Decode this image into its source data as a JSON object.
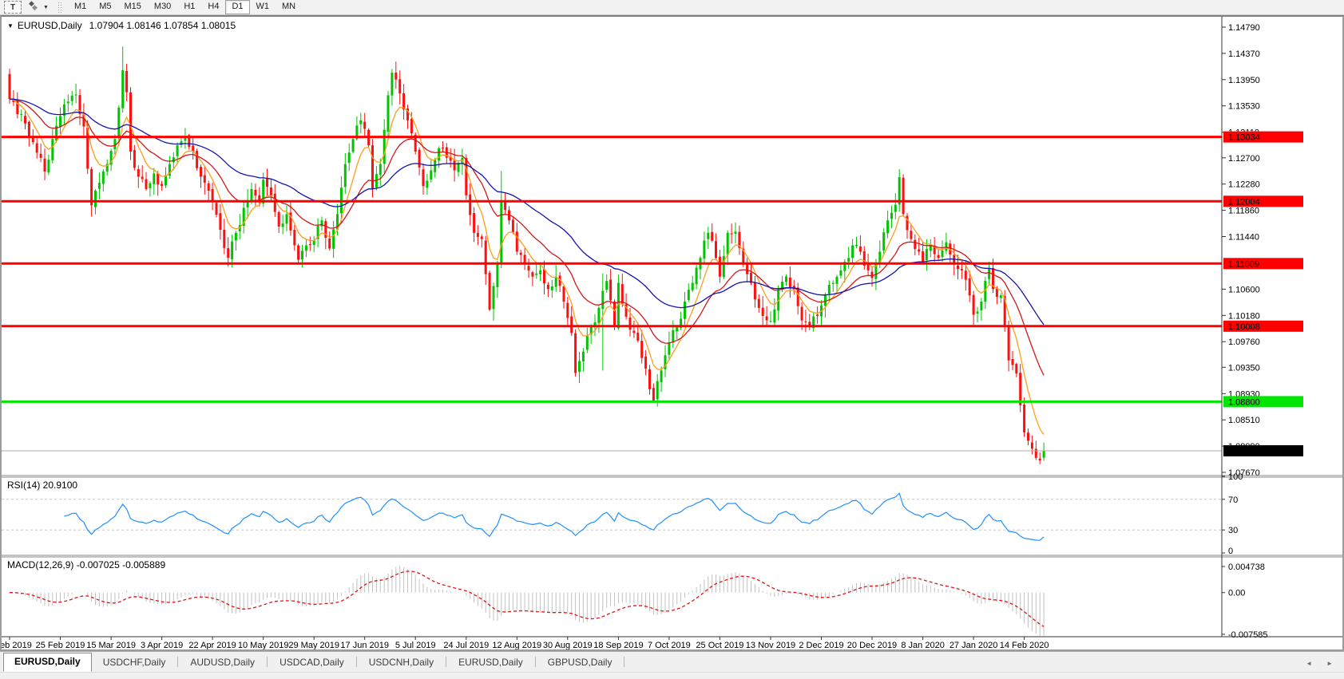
{
  "toolbar": {
    "text_tool": "T",
    "styles_icon": "◆",
    "dropdown_arrow": "▼",
    "timeframes": [
      "M1",
      "M5",
      "M15",
      "M30",
      "H1",
      "H4",
      "D1",
      "W1",
      "MN"
    ],
    "active_timeframe": "D1"
  },
  "chart": {
    "collapse_icon": "▼",
    "title_symbol": "EURUSD,Daily",
    "title_ohlc": "1.07904 1.08146 1.07854 1.08015",
    "bars": 266,
    "colors": {
      "bull": "#00C400",
      "bear": "#FE1010",
      "level_red": "#FF0000",
      "level_green": "#00E600",
      "current_line": "#ABABAB",
      "current_label_bg": "#000000",
      "pane_border": "#8a8a8a",
      "axis_line": "#333333"
    },
    "y_axis_ticks": [
      "1.14790",
      "1.14370",
      "1.13950",
      "1.13530",
      "1.13110",
      "1.12700",
      "1.12280",
      "1.11860",
      "1.11440",
      "1.10600",
      "1.10180",
      "1.09760",
      "1.09350",
      "1.08930",
      "1.08510",
      "1.08090",
      "1.07670"
    ],
    "levels": [
      {
        "label": "1.13034",
        "price": 1.13034,
        "color": "#FF0000",
        "text_color": "#FFFFFF"
      },
      {
        "label": "1.12004",
        "price": 1.12004,
        "color": "#FF0000",
        "text_color": "#FFFFFF"
      },
      {
        "label": "1.11009",
        "price": 1.11009,
        "color": "#FF0000",
        "text_color": "#FFFFFF"
      },
      {
        "label": "1.10008",
        "price": 1.10008,
        "color": "#FF0000",
        "text_color": "#FFFFFF"
      },
      {
        "label": "1.08800",
        "price": 1.088,
        "color": "#00E600",
        "text_color": "#000000"
      }
    ],
    "current_price": {
      "label": "1.08015",
      "price": 1.08015
    },
    "last_candle": {
      "open": 1.07904,
      "high": 1.08146,
      "low": 1.07854,
      "close": 1.08015
    },
    "x_axis": {
      "labels": [
        {
          "label": "6 Feb 2019",
          "bar": 0
        },
        {
          "label": "25 Feb 2019",
          "bar": 13
        },
        {
          "label": "15 Mar 2019",
          "bar": 26
        },
        {
          "label": "3 Apr 2019",
          "bar": 39
        },
        {
          "label": "22 Apr 2019",
          "bar": 52
        },
        {
          "label": "10 May 2019",
          "bar": 65
        },
        {
          "label": "29 May 2019",
          "bar": 78
        },
        {
          "label": "17 Jun 2019",
          "bar": 91
        },
        {
          "label": "5 Jul 2019",
          "bar": 104
        },
        {
          "label": "24 Jul 2019",
          "bar": 117
        },
        {
          "label": "12 Aug 2019",
          "bar": 130
        },
        {
          "label": "30 Aug 2019",
          "bar": 143
        },
        {
          "label": "18 Sep 2019",
          "bar": 156
        },
        {
          "label": "7 Oct 2019",
          "bar": 169
        },
        {
          "label": "25 Oct 2019",
          "bar": 182
        },
        {
          "label": "13 Nov 2019",
          "bar": 195
        },
        {
          "label": "2 Dec 2019",
          "bar": 208
        },
        {
          "label": "20 Dec 2019",
          "bar": 221
        },
        {
          "label": "8 Jan 2020",
          "bar": 234
        },
        {
          "label": "27 Jan 2020",
          "bar": 247
        },
        {
          "label": "14 Feb 2020",
          "bar": 260
        }
      ]
    },
    "price_anchors": [
      [
        0,
        1.1364
      ],
      [
        2,
        1.134
      ],
      [
        4,
        1.1325
      ],
      [
        6,
        1.1295
      ],
      [
        8,
        1.127
      ],
      [
        9,
        1.1248
      ],
      [
        11,
        1.13
      ],
      [
        13,
        1.1337
      ],
      [
        15,
        1.136
      ],
      [
        17,
        1.1371
      ],
      [
        19,
        1.132
      ],
      [
        21,
        1.1194
      ],
      [
        23,
        1.123
      ],
      [
        25,
        1.126
      ],
      [
        27,
        1.13
      ],
      [
        29,
        1.141
      ],
      [
        30,
        1.1375
      ],
      [
        31,
        1.128
      ],
      [
        33,
        1.124
      ],
      [
        35,
        1.122
      ],
      [
        37,
        1.1245
      ],
      [
        39,
        1.1225
      ],
      [
        41,
        1.126
      ],
      [
        43,
        1.129
      ],
      [
        45,
        1.1305
      ],
      [
        47,
        1.128
      ],
      [
        49,
        1.124
      ],
      [
        50,
        1.123
      ],
      [
        52,
        1.12
      ],
      [
        54,
        1.1155
      ],
      [
        56,
        1.111
      ],
      [
        58,
        1.115
      ],
      [
        60,
        1.119
      ],
      [
        62,
        1.122
      ],
      [
        64,
        1.12
      ],
      [
        65,
        1.1235
      ],
      [
        67,
        1.121
      ],
      [
        69,
        1.116
      ],
      [
        71,
        1.118
      ],
      [
        73,
        1.113
      ],
      [
        74,
        1.1107
      ],
      [
        76,
        1.113
      ],
      [
        78,
        1.1138
      ],
      [
        80,
        1.117
      ],
      [
        82,
        1.1125
      ],
      [
        84,
        1.118
      ],
      [
        86,
        1.126
      ],
      [
        88,
        1.13
      ],
      [
        90,
        1.133
      ],
      [
        92,
        1.129
      ],
      [
        93,
        1.122
      ],
      [
        95,
        1.126
      ],
      [
        97,
        1.137
      ],
      [
        98,
        1.1406
      ],
      [
        100,
        1.1373
      ],
      [
        102,
        1.133
      ],
      [
        104,
        1.128
      ],
      [
        106,
        1.1225
      ],
      [
        108,
        1.125
      ],
      [
        110,
        1.1285
      ],
      [
        112,
        1.127
      ],
      [
        114,
        1.125
      ],
      [
        116,
        1.127
      ],
      [
        117,
        1.121
      ],
      [
        119,
        1.115
      ],
      [
        121,
        1.114
      ],
      [
        123,
        1.1027
      ],
      [
        125,
        1.11
      ],
      [
        126,
        1.12
      ],
      [
        128,
        1.117
      ],
      [
        130,
        1.112
      ],
      [
        132,
        1.11
      ],
      [
        134,
        1.108
      ],
      [
        136,
        1.109
      ],
      [
        138,
        1.106
      ],
      [
        140,
        1.108
      ],
      [
        142,
        1.104
      ],
      [
        144,
        1.099
      ],
      [
        145,
        1.0926
      ],
      [
        147,
        1.096
      ],
      [
        149,
        1.1
      ],
      [
        151,
        1.103
      ],
      [
        153,
        1.1073
      ],
      [
        155,
        1.1
      ],
      [
        156,
        1.107
      ],
      [
        158,
        1.1016
      ],
      [
        160,
        1.099
      ],
      [
        162,
        1.095
      ],
      [
        164,
        1.09
      ],
      [
        165,
        1.0881
      ],
      [
        167,
        1.093
      ],
      [
        169,
        1.0975
      ],
      [
        171,
        1.1
      ],
      [
        173,
        1.104
      ],
      [
        175,
        1.107
      ],
      [
        177,
        1.111
      ],
      [
        179,
        1.115
      ],
      [
        181,
        1.111
      ],
      [
        182,
        1.108
      ],
      [
        184,
        1.115
      ],
      [
        186,
        1.1152
      ],
      [
        188,
        1.11
      ],
      [
        190,
        1.107
      ],
      [
        192,
        1.103
      ],
      [
        194,
        1.101
      ],
      [
        195,
        1.1009
      ],
      [
        197,
        1.106
      ],
      [
        199,
        1.108
      ],
      [
        201,
        1.106
      ],
      [
        203,
        1.101
      ],
      [
        205,
        1.1
      ],
      [
        207,
        1.1017
      ],
      [
        209,
        1.105
      ],
      [
        211,
        1.107
      ],
      [
        213,
        1.109
      ],
      [
        215,
        1.111
      ],
      [
        216,
        1.113
      ],
      [
        218,
        1.112
      ],
      [
        220,
        1.109
      ],
      [
        221,
        1.1078
      ],
      [
        223,
        1.112
      ],
      [
        225,
        1.117
      ],
      [
        227,
        1.1195
      ],
      [
        228,
        1.1239
      ],
      [
        229,
        1.118
      ],
      [
        231,
        1.114
      ],
      [
        233,
        1.112
      ],
      [
        234,
        1.1104
      ],
      [
        236,
        1.113
      ],
      [
        238,
        1.111
      ],
      [
        240,
        1.1135
      ],
      [
        242,
        1.11
      ],
      [
        244,
        1.109
      ],
      [
        246,
        1.105
      ],
      [
        247,
        1.1019
      ],
      [
        249,
        1.104
      ],
      [
        251,
        1.1093
      ],
      [
        252,
        1.106
      ],
      [
        254,
        1.105
      ],
      [
        256,
        1.0946
      ],
      [
        258,
        1.0925
      ],
      [
        260,
        1.0831
      ],
      [
        262,
        1.0805
      ],
      [
        263,
        1.079
      ],
      [
        264,
        1.0786
      ],
      [
        265,
        1.08015
      ]
    ],
    "wick_overrides": [
      {
        "bar": 21,
        "low": 1.1176
      },
      {
        "bar": 29,
        "high": 1.1448
      },
      {
        "bar": 56,
        "low": 1.1096
      },
      {
        "bar": 98,
        "high": 1.1412
      },
      {
        "bar": 123,
        "low": 1.1025
      },
      {
        "bar": 126,
        "high": 1.1249
      },
      {
        "bar": 145,
        "low": 1.092
      },
      {
        "bar": 152,
        "high": 1.1085,
        "low": 1.093
      },
      {
        "bar": 165,
        "low": 1.0879
      },
      {
        "bar": 264,
        "low": 1.078
      }
    ],
    "moving_averages": [
      {
        "name": "fast-ma",
        "period": 7,
        "color": "#FF9D1C"
      },
      {
        "name": "mid-ma",
        "period": 20,
        "color": "#D41616"
      },
      {
        "name": "slow-ma",
        "period": 48,
        "color": "#1414AE"
      }
    ]
  },
  "rsi": {
    "label": "RSI(14) 20.9100",
    "period": 14,
    "value": "20.9100",
    "scale_labels": [
      "100",
      "70",
      "30",
      "0"
    ],
    "levels": [
      70,
      30
    ],
    "line_color": "#1E90FF"
  },
  "macd": {
    "label": "MACD(12,26,9) -0.007025 -0.005889",
    "fast": 12,
    "slow": 26,
    "signal_period": 9,
    "value_main": "-0.007025",
    "value_signal": "-0.005889",
    "scale_labels": [
      "0.004738",
      "0.00",
      "-0.007585"
    ],
    "scale_range": [
      0.004738,
      -0.007585
    ],
    "histogram_color": "#C2C2C2",
    "signal_color": "#E01414"
  },
  "tabs": {
    "items": [
      {
        "label": "EURUSD,Daily",
        "active": true
      },
      {
        "label": "USDCHF,Daily",
        "active": false
      },
      {
        "label": "AUDUSD,Daily",
        "active": false
      },
      {
        "label": "USDCAD,Daily",
        "active": false
      },
      {
        "label": "USDCNH,Daily",
        "active": false
      },
      {
        "label": "EURUSD,Daily",
        "active": false
      },
      {
        "label": "GBPUSD,Daily",
        "active": false
      }
    ],
    "nav_left": "◄",
    "nav_right": "►"
  }
}
